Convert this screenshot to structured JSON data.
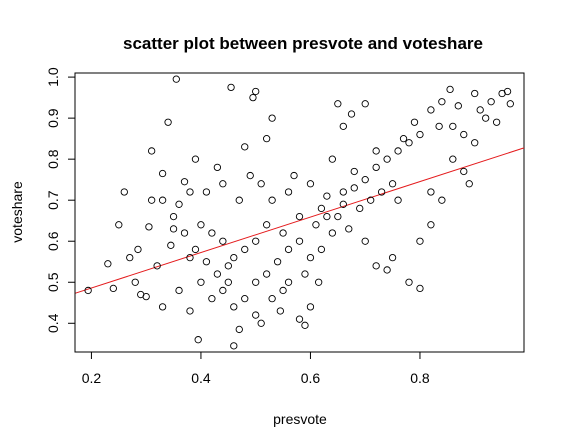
{
  "chart_data": {
    "type": "scatter",
    "title": "scatter plot between presvote and voteshare",
    "xlabel": "presvote",
    "ylabel": "voteshare",
    "xlim": [
      0.17,
      0.99
    ],
    "ylim": [
      0.33,
      1.01
    ],
    "x_ticks": [
      0.2,
      0.4,
      0.6,
      0.8
    ],
    "x_tick_labels": [
      "0.2",
      "0.4",
      "0.6",
      "0.8"
    ],
    "y_ticks": [
      0.4,
      0.5,
      0.6,
      0.7,
      0.8,
      0.9,
      1.0
    ],
    "y_tick_labels": [
      "0.4",
      "0.5",
      "0.6",
      "0.7",
      "0.8",
      "0.9",
      "1.0"
    ],
    "grid": false,
    "point_color": "#000000",
    "regression_line": {
      "color": "#e41a1c",
      "intercept": 0.3995,
      "slope": 0.4323
    },
    "points": [
      [
        0.194,
        0.48
      ],
      [
        0.23,
        0.545
      ],
      [
        0.24,
        0.485
      ],
      [
        0.25,
        0.64
      ],
      [
        0.26,
        0.72
      ],
      [
        0.27,
        0.56
      ],
      [
        0.28,
        0.5
      ],
      [
        0.285,
        0.58
      ],
      [
        0.29,
        0.47
      ],
      [
        0.3,
        0.465
      ],
      [
        0.31,
        0.82
      ],
      [
        0.305,
        0.635
      ],
      [
        0.32,
        0.54
      ],
      [
        0.33,
        0.44
      ],
      [
        0.34,
        0.89
      ],
      [
        0.35,
        0.63
      ],
      [
        0.355,
        0.995
      ],
      [
        0.36,
        0.48
      ],
      [
        0.37,
        0.745
      ],
      [
        0.38,
        0.43
      ],
      [
        0.39,
        0.8
      ],
      [
        0.395,
        0.36
      ],
      [
        0.31,
        0.7
      ],
      [
        0.33,
        0.765
      ],
      [
        0.345,
        0.59
      ],
      [
        0.36,
        0.69
      ],
      [
        0.38,
        0.56
      ],
      [
        0.44,
        0.74
      ],
      [
        0.45,
        0.54
      ],
      [
        0.455,
        0.975
      ],
      [
        0.46,
        0.345
      ],
      [
        0.47,
        0.385
      ],
      [
        0.48,
        0.83
      ],
      [
        0.495,
        0.95
      ],
      [
        0.5,
        0.965
      ],
      [
        0.51,
        0.4
      ],
      [
        0.52,
        0.85
      ],
      [
        0.53,
        0.9
      ],
      [
        0.545,
        0.43
      ],
      [
        0.55,
        0.48
      ],
      [
        0.58,
        0.41
      ],
      [
        0.59,
        0.395
      ],
      [
        0.6,
        0.44
      ],
      [
        0.615,
        0.5
      ],
      [
        0.64,
        0.8
      ],
      [
        0.65,
        0.935
      ],
      [
        0.66,
        0.88
      ],
      [
        0.675,
        0.91
      ],
      [
        0.7,
        0.935
      ],
      [
        0.72,
        0.54
      ],
      [
        0.74,
        0.53
      ],
      [
        0.76,
        0.7
      ],
      [
        0.77,
        0.85
      ],
      [
        0.78,
        0.5
      ],
      [
        0.8,
        0.485
      ],
      [
        0.79,
        0.89
      ],
      [
        0.82,
        0.92
      ],
      [
        0.84,
        0.94
      ],
      [
        0.855,
        0.97
      ],
      [
        0.86,
        0.88
      ],
      [
        0.87,
        0.93
      ],
      [
        0.88,
        0.77
      ],
      [
        0.89,
        0.74
      ],
      [
        0.9,
        0.96
      ],
      [
        0.91,
        0.92
      ],
      [
        0.93,
        0.94
      ],
      [
        0.94,
        0.89
      ],
      [
        0.95,
        0.96
      ],
      [
        0.96,
        0.965
      ],
      [
        0.965,
        0.935
      ],
      [
        0.835,
        0.88
      ],
      [
        0.86,
        0.8
      ],
      [
        0.88,
        0.86
      ],
      [
        0.9,
        0.84
      ],
      [
        0.92,
        0.9
      ],
      [
        0.82,
        0.72
      ],
      [
        0.84,
        0.7
      ],
      [
        0.8,
        0.6
      ],
      [
        0.82,
        0.64
      ],
      [
        0.75,
        0.56
      ],
      [
        0.7,
        0.6
      ],
      [
        0.68,
        0.77
      ],
      [
        0.72,
        0.82
      ],
      [
        0.66,
        0.72
      ],
      [
        0.62,
        0.68
      ],
      [
        0.58,
        0.66
      ],
      [
        0.55,
        0.62
      ],
      [
        0.52,
        0.64
      ],
      [
        0.5,
        0.6
      ],
      [
        0.48,
        0.58
      ],
      [
        0.46,
        0.56
      ],
      [
        0.44,
        0.6
      ],
      [
        0.42,
        0.62
      ],
      [
        0.4,
        0.64
      ],
      [
        0.41,
        0.72
      ],
      [
        0.43,
        0.78
      ],
      [
        0.47,
        0.7
      ],
      [
        0.49,
        0.76
      ],
      [
        0.51,
        0.74
      ],
      [
        0.53,
        0.7
      ],
      [
        0.56,
        0.72
      ],
      [
        0.57,
        0.76
      ],
      [
        0.6,
        0.74
      ],
      [
        0.63,
        0.71
      ],
      [
        0.65,
        0.66
      ],
      [
        0.67,
        0.63
      ],
      [
        0.69,
        0.68
      ],
      [
        0.71,
        0.7
      ],
      [
        0.73,
        0.72
      ],
      [
        0.75,
        0.74
      ],
      [
        0.5,
        0.5
      ],
      [
        0.52,
        0.52
      ],
      [
        0.54,
        0.55
      ],
      [
        0.56,
        0.58
      ],
      [
        0.58,
        0.6
      ],
      [
        0.6,
        0.56
      ],
      [
        0.62,
        0.58
      ],
      [
        0.64,
        0.62
      ],
      [
        0.45,
        0.5
      ],
      [
        0.43,
        0.52
      ],
      [
        0.41,
        0.55
      ],
      [
        0.39,
        0.58
      ],
      [
        0.37,
        0.62
      ],
      [
        0.35,
        0.66
      ],
      [
        0.33,
        0.7
      ],
      [
        0.38,
        0.72
      ],
      [
        0.4,
        0.5
      ],
      [
        0.42,
        0.46
      ],
      [
        0.44,
        0.48
      ],
      [
        0.46,
        0.44
      ],
      [
        0.48,
        0.46
      ],
      [
        0.5,
        0.42
      ],
      [
        0.53,
        0.46
      ],
      [
        0.56,
        0.5
      ],
      [
        0.59,
        0.52
      ],
      [
        0.61,
        0.64
      ],
      [
        0.63,
        0.66
      ],
      [
        0.66,
        0.69
      ],
      [
        0.68,
        0.73
      ],
      [
        0.7,
        0.75
      ],
      [
        0.72,
        0.78
      ],
      [
        0.74,
        0.8
      ],
      [
        0.76,
        0.82
      ],
      [
        0.78,
        0.84
      ],
      [
        0.8,
        0.86
      ]
    ]
  }
}
